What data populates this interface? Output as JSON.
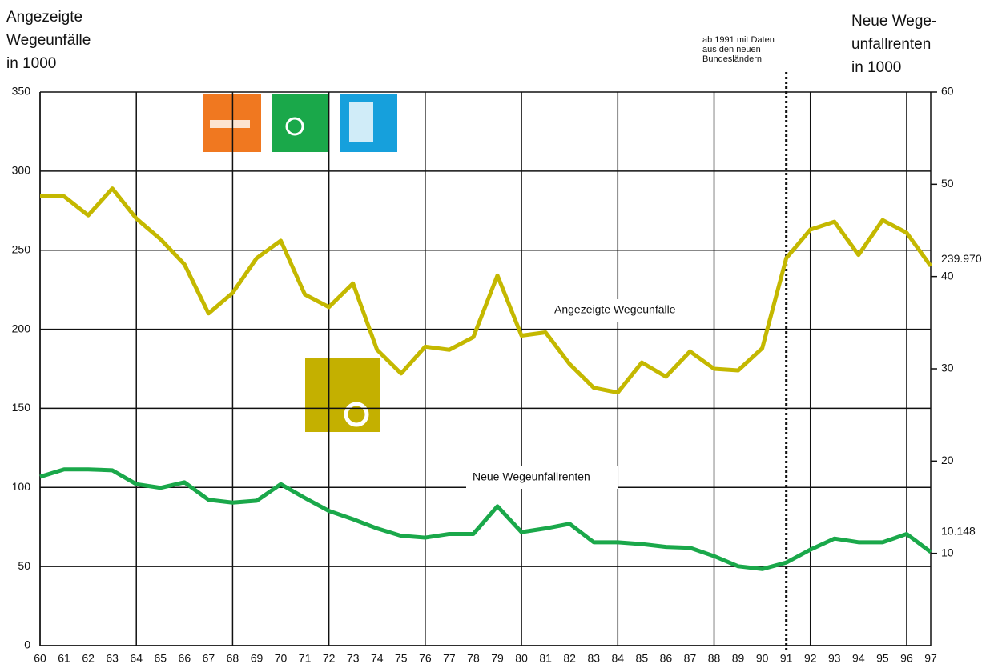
{
  "chart_data": {
    "type": "line",
    "y_label": [
      "Angezeigte",
      "Wegeunfälle",
      "in 1000"
    ],
    "y2_label": [
      "Neue Wege-",
      "unfallrenten",
      "in 1000"
    ],
    "x": [
      60,
      61,
      62,
      63,
      64,
      65,
      66,
      67,
      68,
      69,
      70,
      71,
      72,
      73,
      74,
      75,
      76,
      77,
      78,
      79,
      80,
      81,
      82,
      83,
      84,
      85,
      86,
      87,
      88,
      89,
      90,
      91,
      92,
      93,
      94,
      95,
      96,
      97
    ],
    "xlim": [
      60,
      97
    ],
    "xticks": [
      60,
      61,
      62,
      63,
      64,
      65,
      66,
      67,
      68,
      69,
      70,
      71,
      72,
      73,
      74,
      75,
      76,
      77,
      78,
      79,
      80,
      81,
      82,
      83,
      84,
      85,
      86,
      87,
      88,
      89,
      90,
      91,
      92,
      93,
      94,
      95,
      96,
      97
    ],
    "ylim": [
      0,
      350
    ],
    "yticks": [
      0,
      50,
      100,
      150,
      200,
      250,
      300,
      350
    ],
    "y2lim": [
      0,
      60
    ],
    "y2ticks": [
      10,
      20,
      30,
      40,
      50,
      60
    ],
    "grid": true,
    "series": [
      {
        "name": "Angezeigte Wegeunfälle",
        "color": "#c4b800",
        "axis": "y",
        "values": [
          284,
          284,
          272,
          289,
          270,
          257,
          241,
          210,
          223,
          245,
          256,
          222,
          214,
          229,
          187,
          172,
          189,
          187,
          195,
          234,
          196,
          198,
          178,
          163,
          160,
          179,
          170,
          186,
          175,
          174,
          188,
          245,
          263,
          268,
          247,
          269,
          261,
          239.97
        ],
        "end_label": "239.970"
      },
      {
        "name": "Neue Wegeunfallrenten",
        "color": "#1aa84a",
        "axis": "y2",
        "values": [
          18.3,
          19.1,
          19.1,
          19.0,
          17.5,
          17.1,
          17.7,
          15.8,
          15.5,
          15.7,
          17.5,
          16.0,
          14.6,
          13.7,
          12.7,
          11.9,
          11.7,
          12.1,
          12.1,
          15.1,
          12.3,
          12.7,
          13.2,
          11.2,
          11.2,
          11.0,
          10.7,
          10.6,
          9.7,
          8.6,
          8.3,
          9.0,
          10.4,
          11.6,
          11.2,
          11.2,
          12.1,
          10.148
        ],
        "end_label": "10.148"
      }
    ],
    "annotation": {
      "text": [
        "ab 1991 mit Daten",
        "aus den neuen",
        "Bundesländern"
      ],
      "x": 91
    }
  }
}
